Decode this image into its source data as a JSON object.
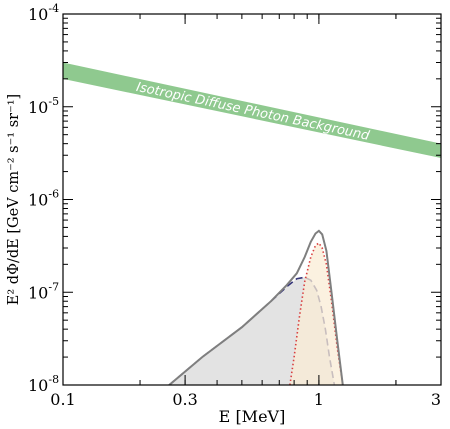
{
  "chart_data": {
    "type": "line",
    "x_scale": "log",
    "y_scale": "log",
    "xlim": [
      0.1,
      3
    ],
    "ylim": [
      1e-08,
      0.0001
    ],
    "xlabel": "E [MeV]",
    "ylabel": "E² dΦ/dE [GeV cm⁻² s⁻¹ sr⁻¹]",
    "x_ticks": [
      {
        "value": 0.1,
        "label": "0.1"
      },
      {
        "value": 0.3,
        "label": "0.3"
      },
      {
        "value": 1,
        "label": "1"
      },
      {
        "value": 3,
        "label": "3"
      }
    ],
    "y_ticks": [
      {
        "value": 1e-08,
        "base": "10",
        "exp": "-8"
      },
      {
        "value": 1e-07,
        "base": "10",
        "exp": "-7"
      },
      {
        "value": 1e-06,
        "base": "10",
        "exp": "-6"
      },
      {
        "value": 1e-05,
        "base": "10",
        "exp": "-5"
      },
      {
        "value": 0.0001,
        "base": "10",
        "exp": "-4"
      }
    ],
    "band": {
      "label": "Isotropic Diffuse Photon Background",
      "color": "#8fc98f",
      "x": [
        0.1,
        3
      ],
      "y_upper": [
        3e-05,
        4e-06
      ],
      "y_lower": [
        2e-05,
        2.8e-06
      ]
    },
    "series": [
      {
        "style": "dashed",
        "color": "#35357a",
        "fill": "#d9d9d9",
        "x": [
          0.26,
          0.35,
          0.5,
          0.65,
          0.75,
          0.82,
          0.88,
          0.93,
          0.98,
          1.02,
          1.06,
          1.1,
          1.15
        ],
        "y": [
          1e-08,
          2e-08,
          4.2e-08,
          8e-08,
          1.15e-07,
          1.4e-07,
          1.45e-07,
          1.35e-07,
          1.05e-07,
          7e-08,
          4e-08,
          2e-08,
          1e-08
        ]
      },
      {
        "style": "dotted",
        "color": "#d94040",
        "fill": "#faecd6",
        "x": [
          0.77,
          0.8,
          0.84,
          0.88,
          0.93,
          0.97,
          1.0,
          1.03,
          1.07,
          1.12,
          1.18,
          1.24
        ],
        "y": [
          1e-08,
          2e-08,
          5.5e-08,
          1.3e-07,
          2.4e-07,
          3.2e-07,
          3.4e-07,
          3e-07,
          2e-07,
          8e-08,
          2.5e-08,
          1e-08
        ]
      },
      {
        "style": "solid",
        "color": "#7f7f7f",
        "x": [
          0.26,
          0.35,
          0.5,
          0.65,
          0.75,
          0.82,
          0.88,
          0.93,
          0.97,
          1.0,
          1.03,
          1.07,
          1.12,
          1.18,
          1.24
        ],
        "y": [
          1e-08,
          2e-08,
          4.2e-08,
          8e-08,
          1.2e-07,
          1.6e-07,
          2.4e-07,
          3.5e-07,
          4.3e-07,
          4.6e-07,
          4.2e-07,
          2.8e-07,
          1e-07,
          3e-08,
          1e-08
        ]
      }
    ]
  }
}
